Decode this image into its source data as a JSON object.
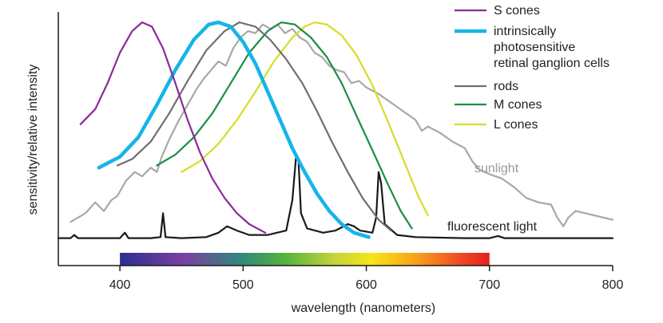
{
  "chart_data": {
    "type": "line",
    "title": "",
    "xlabel": "wavelength (nanometers)",
    "ylabel": "sensitivity/relative intensity",
    "xlim": [
      350,
      800
    ],
    "ylim": [
      0,
      1.05
    ],
    "x_ticks": [
      "400",
      "500",
      "600",
      "700",
      "800"
    ],
    "x_tick_values": [
      400,
      500,
      600,
      700,
      800
    ],
    "grid": false,
    "legend_position": "top-right",
    "spectrum_bar": {
      "from": 400,
      "to": 700
    },
    "series": [
      {
        "name": "S cones",
        "color": "#8b2a9a",
        "width": 2.2,
        "points": [
          [
            368,
            0.53
          ],
          [
            380,
            0.6
          ],
          [
            390,
            0.72
          ],
          [
            400,
            0.86
          ],
          [
            410,
            0.96
          ],
          [
            418,
            1.0
          ],
          [
            426,
            0.98
          ],
          [
            435,
            0.88
          ],
          [
            445,
            0.72
          ],
          [
            455,
            0.55
          ],
          [
            465,
            0.4
          ],
          [
            475,
            0.28
          ],
          [
            485,
            0.19
          ],
          [
            495,
            0.12
          ],
          [
            505,
            0.07
          ],
          [
            518,
            0.03
          ]
        ]
      },
      {
        "name": "intrinsically photosensitive retinal ganglion cells",
        "color": "#16b4e8",
        "width": 4.5,
        "points": [
          [
            383,
            0.33
          ],
          [
            400,
            0.38
          ],
          [
            415,
            0.47
          ],
          [
            430,
            0.62
          ],
          [
            445,
            0.78
          ],
          [
            460,
            0.92
          ],
          [
            472,
            0.99
          ],
          [
            480,
            1.0
          ],
          [
            490,
            0.98
          ],
          [
            500,
            0.91
          ],
          [
            510,
            0.81
          ],
          [
            520,
            0.68
          ],
          [
            530,
            0.55
          ],
          [
            540,
            0.42
          ],
          [
            550,
            0.31
          ],
          [
            560,
            0.21
          ],
          [
            570,
            0.13
          ],
          [
            580,
            0.07
          ],
          [
            590,
            0.03
          ],
          [
            602,
            0.01
          ]
        ]
      },
      {
        "name": "rods",
        "color": "#6f6f6f",
        "width": 2.2,
        "points": [
          [
            398,
            0.34
          ],
          [
            410,
            0.37
          ],
          [
            425,
            0.45
          ],
          [
            440,
            0.58
          ],
          [
            455,
            0.73
          ],
          [
            470,
            0.87
          ],
          [
            485,
            0.96
          ],
          [
            497,
            1.0
          ],
          [
            510,
            0.98
          ],
          [
            522,
            0.92
          ],
          [
            535,
            0.83
          ],
          [
            548,
            0.72
          ],
          [
            560,
            0.59
          ],
          [
            572,
            0.45
          ],
          [
            585,
            0.31
          ],
          [
            597,
            0.19
          ],
          [
            610,
            0.09
          ],
          [
            620,
            0.04
          ]
        ]
      },
      {
        "name": "M cones",
        "color": "#1a8f46",
        "width": 2.2,
        "points": [
          [
            430,
            0.34
          ],
          [
            445,
            0.39
          ],
          [
            460,
            0.47
          ],
          [
            475,
            0.58
          ],
          [
            490,
            0.72
          ],
          [
            505,
            0.86
          ],
          [
            520,
            0.96
          ],
          [
            531,
            1.0
          ],
          [
            542,
            0.99
          ],
          [
            555,
            0.93
          ],
          [
            568,
            0.84
          ],
          [
            580,
            0.72
          ],
          [
            592,
            0.57
          ],
          [
            605,
            0.41
          ],
          [
            617,
            0.26
          ],
          [
            628,
            0.13
          ],
          [
            637,
            0.05
          ]
        ]
      },
      {
        "name": "L cones",
        "color": "#d8dc28",
        "width": 2.2,
        "points": [
          [
            450,
            0.31
          ],
          [
            465,
            0.36
          ],
          [
            480,
            0.44
          ],
          [
            495,
            0.55
          ],
          [
            510,
            0.68
          ],
          [
            525,
            0.82
          ],
          [
            540,
            0.93
          ],
          [
            550,
            0.98
          ],
          [
            558,
            1.0
          ],
          [
            568,
            0.99
          ],
          [
            580,
            0.94
          ],
          [
            592,
            0.85
          ],
          [
            605,
            0.71
          ],
          [
            617,
            0.55
          ],
          [
            630,
            0.37
          ],
          [
            642,
            0.2
          ],
          [
            650,
            0.11
          ]
        ]
      },
      {
        "name": "sunlight",
        "color": "#a8a8a8",
        "width": 2.2,
        "points": [
          [
            360,
            0.08
          ],
          [
            372,
            0.12
          ],
          [
            380,
            0.17
          ],
          [
            387,
            0.13
          ],
          [
            393,
            0.18
          ],
          [
            398,
            0.2
          ],
          [
            405,
            0.27
          ],
          [
            412,
            0.31
          ],
          [
            418,
            0.29
          ],
          [
            425,
            0.33
          ],
          [
            430,
            0.31
          ],
          [
            434,
            0.38
          ],
          [
            440,
            0.46
          ],
          [
            448,
            0.55
          ],
          [
            456,
            0.63
          ],
          [
            462,
            0.69
          ],
          [
            468,
            0.74
          ],
          [
            474,
            0.78
          ],
          [
            480,
            0.82
          ],
          [
            486,
            0.8
          ],
          [
            492,
            0.88
          ],
          [
            498,
            0.93
          ],
          [
            504,
            0.96
          ],
          [
            510,
            0.95
          ],
          [
            516,
            0.99
          ],
          [
            522,
            0.97
          ],
          [
            528,
            0.99
          ],
          [
            534,
            0.95
          ],
          [
            540,
            0.97
          ],
          [
            546,
            0.93
          ],
          [
            552,
            0.91
          ],
          [
            558,
            0.86
          ],
          [
            564,
            0.84
          ],
          [
            570,
            0.8
          ],
          [
            576,
            0.78
          ],
          [
            582,
            0.77
          ],
          [
            588,
            0.72
          ],
          [
            594,
            0.73
          ],
          [
            600,
            0.7
          ],
          [
            610,
            0.67
          ],
          [
            620,
            0.63
          ],
          [
            630,
            0.59
          ],
          [
            640,
            0.55
          ],
          [
            645,
            0.5
          ],
          [
            650,
            0.52
          ],
          [
            660,
            0.49
          ],
          [
            670,
            0.45
          ],
          [
            680,
            0.42
          ],
          [
            686,
            0.36
          ],
          [
            692,
            0.32
          ],
          [
            700,
            0.3
          ],
          [
            710,
            0.28
          ],
          [
            720,
            0.24
          ],
          [
            730,
            0.19
          ],
          [
            740,
            0.17
          ],
          [
            750,
            0.16
          ],
          [
            755,
            0.1
          ],
          [
            760,
            0.06
          ],
          [
            764,
            0.1
          ],
          [
            770,
            0.13
          ],
          [
            785,
            0.11
          ],
          [
            800,
            0.09
          ]
        ]
      },
      {
        "name": "fluorescent light",
        "color": "#1a1a1a",
        "width": 2.2,
        "points": [
          [
            350,
            0.005
          ],
          [
            360,
            0.005
          ],
          [
            363,
            0.02
          ],
          [
            366,
            0.005
          ],
          [
            380,
            0.005
          ],
          [
            400,
            0.005
          ],
          [
            404,
            0.03
          ],
          [
            407,
            0.005
          ],
          [
            425,
            0.005
          ],
          [
            433,
            0.01
          ],
          [
            435,
            0.12
          ],
          [
            437,
            0.01
          ],
          [
            450,
            0.005
          ],
          [
            470,
            0.01
          ],
          [
            480,
            0.03
          ],
          [
            487,
            0.06
          ],
          [
            495,
            0.04
          ],
          [
            505,
            0.02
          ],
          [
            520,
            0.02
          ],
          [
            535,
            0.04
          ],
          [
            540,
            0.18
          ],
          [
            543,
            0.38
          ],
          [
            545,
            0.36
          ],
          [
            547,
            0.12
          ],
          [
            552,
            0.05
          ],
          [
            565,
            0.03
          ],
          [
            575,
            0.04
          ],
          [
            585,
            0.07
          ],
          [
            590,
            0.06
          ],
          [
            595,
            0.04
          ],
          [
            605,
            0.03
          ],
          [
            608,
            0.1
          ],
          [
            610,
            0.31
          ],
          [
            612,
            0.26
          ],
          [
            615,
            0.07
          ],
          [
            625,
            0.02
          ],
          [
            640,
            0.01
          ],
          [
            680,
            0.005
          ],
          [
            700,
            0.005
          ],
          [
            707,
            0.015
          ],
          [
            712,
            0.005
          ],
          [
            750,
            0.005
          ],
          [
            800,
            0.005
          ]
        ]
      }
    ],
    "legend": [
      "S cones",
      "intrinsically photosensitive retinal ganglion cells",
      "rods",
      "M cones",
      "L cones"
    ],
    "legend_lines": [
      [
        "S cones"
      ],
      [
        "intrinsically",
        "photosensitive",
        "retinal ganglion cells"
      ],
      [
        "rods"
      ],
      [
        "M cones"
      ],
      [
        "L cones"
      ]
    ],
    "annotations": [
      "sunlight",
      "fluorescent light"
    ]
  }
}
